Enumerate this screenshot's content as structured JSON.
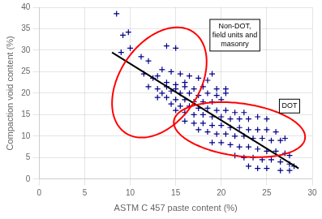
{
  "chart_data": {
    "type": "scatter",
    "xlabel": "ASTM C 457 paste content (%)",
    "ylabel": "Compaction void content (%)",
    "xlim": [
      0,
      30
    ],
    "ylim": [
      0,
      40
    ],
    "xticks": [
      0,
      5,
      10,
      15,
      20,
      25,
      30
    ],
    "yticks": [
      0,
      5,
      10,
      15,
      20,
      25,
      30,
      35,
      40
    ],
    "grid": true,
    "series": [
      {
        "type": "scatter",
        "color": "#00008B",
        "marker": "cross",
        "x": [
          8.5,
          9.2,
          9.8,
          10.0,
          9.0,
          11.2,
          12.0,
          14.0,
          15.0,
          13.5,
          14.5,
          11.5,
          12.5,
          13.0,
          15.5,
          16.5,
          14.0,
          15.0,
          16.0,
          17.5,
          18.5,
          19.0,
          12.0,
          13.0,
          14.0,
          15.0,
          16.0,
          17.0,
          18.0,
          19.5,
          20.5,
          13.5,
          14.5,
          15.5,
          16.5,
          17.5,
          18.5,
          19.5,
          20.5,
          13.0,
          14.0,
          15.0,
          16.0,
          17.0,
          18.0,
          19.0,
          20.0,
          14.5,
          15.5,
          16.5,
          17.5,
          18.5,
          19.5,
          20.5,
          21.5,
          22.5,
          15.0,
          16.0,
          17.0,
          18.0,
          19.0,
          20.0,
          21.0,
          22.0,
          23.0,
          24.0,
          25.0,
          16.0,
          17.0,
          18.0,
          19.0,
          20.0,
          21.0,
          22.0,
          23.0,
          24.0,
          25.0,
          26.0,
          17.5,
          18.5,
          19.5,
          20.5,
          21.5,
          22.5,
          23.5,
          24.5,
          25.5,
          26.5,
          27.0,
          19.0,
          20.0,
          21.0,
          22.0,
          23.0,
          24.0,
          25.0,
          26.0,
          27.0,
          27.5,
          21.5,
          22.5,
          23.5,
          24.5,
          25.5,
          26.5,
          27.5,
          28.0,
          23.0,
          24.0,
          25.0,
          26.5,
          27.5
        ],
        "values": [
          38.5,
          33.5,
          34.2,
          30.5,
          29.5,
          28.5,
          27.5,
          31.0,
          30.5,
          25.5,
          25.0,
          24.5,
          23.5,
          24.0,
          24.5,
          24.0,
          22.5,
          22.0,
          22.5,
          23.5,
          23.0,
          24.5,
          21.5,
          21.0,
          21.5,
          21.0,
          21.5,
          21.0,
          21.5,
          21.0,
          21.0,
          20.0,
          20.5,
          20.0,
          20.0,
          19.5,
          20.0,
          19.5,
          20.0,
          19.0,
          19.0,
          18.5,
          18.5,
          18.0,
          18.0,
          18.0,
          18.5,
          17.5,
          17.0,
          17.0,
          16.5,
          16.5,
          16.0,
          16.0,
          15.5,
          15.5,
          16.0,
          15.5,
          15.0,
          15.0,
          14.5,
          14.5,
          14.0,
          14.0,
          14.0,
          14.5,
          14.0,
          13.5,
          13.0,
          13.0,
          12.5,
          12.5,
          12.0,
          12.0,
          11.5,
          11.5,
          11.5,
          11.0,
          11.5,
          11.0,
          10.5,
          10.5,
          10.0,
          10.0,
          9.5,
          9.5,
          9.0,
          9.0,
          9.5,
          8.5,
          8.5,
          8.0,
          7.5,
          7.5,
          7.0,
          6.5,
          6.5,
          6.0,
          5.5,
          5.5,
          5.0,
          5.0,
          4.5,
          4.5,
          4.0,
          3.5,
          3.0,
          3.0,
          2.5,
          2.5,
          2.0,
          2.0
        ]
      },
      {
        "type": "line",
        "color": "#000000",
        "x": [
          8.0,
          28.5
        ],
        "values": [
          29.5,
          2.5
        ]
      }
    ],
    "ellipses": [
      {
        "cx": 13.2,
        "cy": 22.5,
        "width": 9.5,
        "height": 26.0,
        "angle": -10,
        "color": "#FF0000"
      },
      {
        "cx": 22.0,
        "cy": 11.5,
        "width": 15.5,
        "height": 11.5,
        "angle": -33,
        "color": "#FF0000"
      }
    ],
    "annotations": [
      {
        "text": "Non-DOT,\nfield units and\nmasonry",
        "x": 21.5,
        "y": 33.5
      },
      {
        "text": "DOT",
        "x": 27.5,
        "y": 17.0
      }
    ]
  }
}
